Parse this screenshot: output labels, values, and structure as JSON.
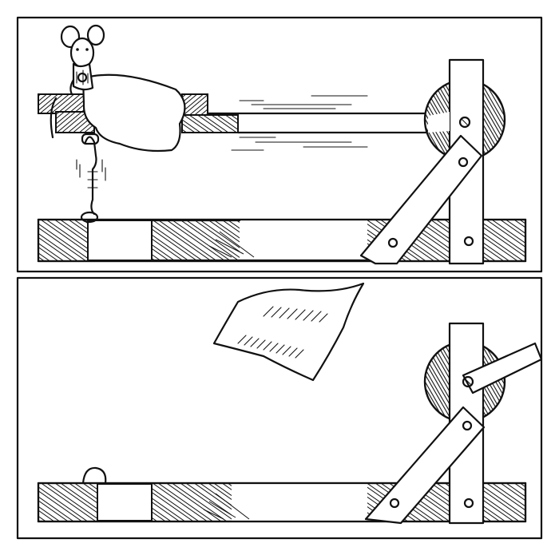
{
  "illustration": {
    "style": "black-and-white pen-and-ink comic strip",
    "panels": [
      {
        "id": "top",
        "objects": [
          "mouse",
          "cloth",
          "wooden-rail",
          "wheel",
          "lever-arms",
          "base-plank",
          "spring-hook"
        ]
      },
      {
        "id": "bottom",
        "objects": [
          "flying-cloth",
          "wheel",
          "lever-arms",
          "base-plank",
          "loose-hook"
        ]
      }
    ],
    "colors": {
      "ink": "#111111",
      "paper": "#ffffff"
    }
  }
}
